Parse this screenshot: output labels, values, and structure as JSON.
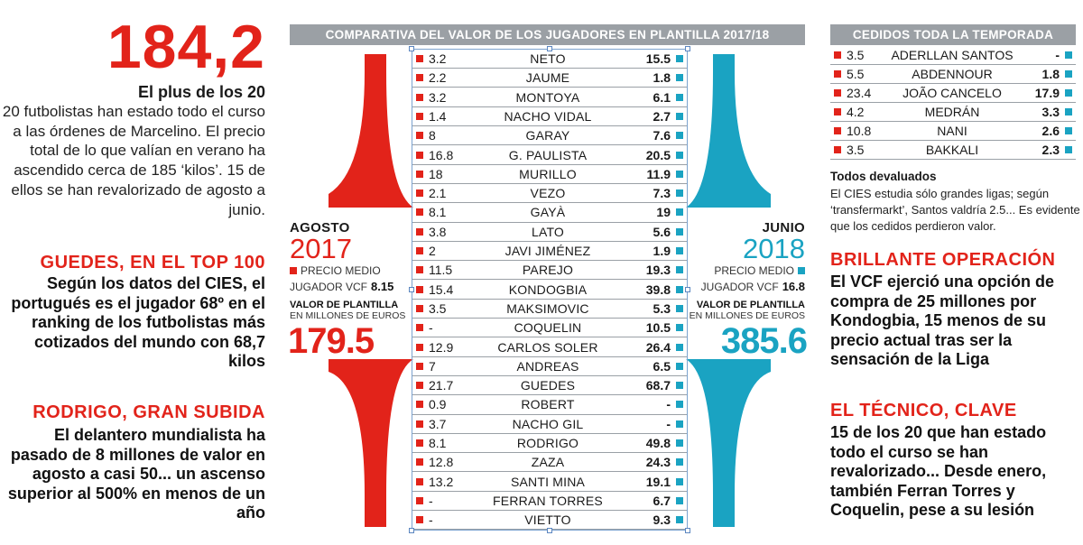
{
  "left": {
    "big_number": "184,2",
    "kicker": "El plus de los 20",
    "intro": "20 futbolistas han estado todo el curso a las órdenes de Marcelino. El precio total de lo que valían en verano ha ascendido cerca de 185 ‘kilos’. 15 de ellos se han revalorizado de agosto a junio.",
    "guedes_head": "GUEDES, EN EL TOP 100",
    "guedes_body": "Según los datos del CIES, el portugués es el jugador 68º en el ranking de los futbolistas más cotizados del mundo con 68,7 kilos",
    "rodrigo_head": "RODRIGO, GRAN SUBIDA",
    "rodrigo_body": "El delantero mundialista ha pasado de 8 millones de valor en agosto a casi 50... un ascenso superior al 500% en menos de un año"
  },
  "center": {
    "title": "COMPARATIVA DEL VALOR DE LOS JUGADORES EN PLANTILLA 2017/18",
    "august": {
      "month": "AGOSTO",
      "year": "2017",
      "price_label_1": "PRECIO MEDIO",
      "price_label_2": "JUGADOR VCF",
      "price_value": "8.15",
      "value_label_1": "VALOR DE PLANTILLA",
      "value_label_2": "EN MILLONES DE EUROS",
      "value": "179.5"
    },
    "june": {
      "month": "JUNIO",
      "year": "2018",
      "price_label_1": "PRECIO MEDIO",
      "price_label_2": "JUGADOR VCF",
      "price_value": "16.8",
      "value_label_1": "VALOR DE PLANTILLA",
      "value_label_2": "EN MILLONES DE EUROS",
      "value": "385.6"
    },
    "colors": {
      "august": "#e2231a",
      "june": "#1aa3c2"
    },
    "players": [
      {
        "aug": "3.2",
        "name": "NETO",
        "jun": "15.5"
      },
      {
        "aug": "2.2",
        "name": "JAUME",
        "jun": "1.8"
      },
      {
        "aug": "3.2",
        "name": "MONTOYA",
        "jun": "6.1"
      },
      {
        "aug": "1.4",
        "name": "NACHO VIDAL",
        "jun": "2.7"
      },
      {
        "aug": "8",
        "name": "GARAY",
        "jun": "7.6"
      },
      {
        "aug": "16.8",
        "name": "G. PAULISTA",
        "jun": "20.5"
      },
      {
        "aug": "18",
        "name": "MURILLO",
        "jun": "11.9"
      },
      {
        "aug": "2.1",
        "name": "VEZO",
        "jun": "7.3"
      },
      {
        "aug": "8.1",
        "name": "GAYÀ",
        "jun": "19"
      },
      {
        "aug": "3.8",
        "name": "LATO",
        "jun": "5.6"
      },
      {
        "aug": "2",
        "name": "JAVI JIMÉNEZ",
        "jun": "1.9"
      },
      {
        "aug": "11.5",
        "name": "PAREJO",
        "jun": "19.3"
      },
      {
        "aug": "15.4",
        "name": "KONDOGBIA",
        "jun": "39.8"
      },
      {
        "aug": "3.5",
        "name": "MAKSIMOVIC",
        "jun": "5.3"
      },
      {
        "aug": "-",
        "name": "COQUELIN",
        "jun": "10.5"
      },
      {
        "aug": "12.9",
        "name": "CARLOS SOLER",
        "jun": "26.4"
      },
      {
        "aug": "7",
        "name": "ANDREAS",
        "jun": "6.5"
      },
      {
        "aug": "21.7",
        "name": "GUEDES",
        "jun": "68.7"
      },
      {
        "aug": "0.9",
        "name": "ROBERT",
        "jun": "-"
      },
      {
        "aug": "3.7",
        "name": "NACHO GIL",
        "jun": "-"
      },
      {
        "aug": "8.1",
        "name": "RODRIGO",
        "jun": "49.8"
      },
      {
        "aug": "12.8",
        "name": "ZAZA",
        "jun": "24.3"
      },
      {
        "aug": "13.2",
        "name": "SANTI MINA",
        "jun": "19.1"
      },
      {
        "aug": "-",
        "name": "FERRAN TORRES",
        "jun": "6.7"
      },
      {
        "aug": "-",
        "name": "VIETTO",
        "jun": "9.3"
      }
    ]
  },
  "right": {
    "loan_title": "CEDIDOS TODA LA TEMPORADA",
    "loans": [
      {
        "aug": "3.5",
        "name": "ADERLLAN SANTOS",
        "jun": "-"
      },
      {
        "aug": "5.5",
        "name": "ABDENNOUR",
        "jun": "1.8"
      },
      {
        "aug": "23.4",
        "name": "JOÃO CANCELO",
        "jun": "17.9"
      },
      {
        "aug": "4.2",
        "name": "MEDRÁN",
        "jun": "3.3"
      },
      {
        "aug": "10.8",
        "name": "NANI",
        "jun": "2.6"
      },
      {
        "aug": "3.5",
        "name": "BAKKALI",
        "jun": "2.3"
      }
    ],
    "devalued_head": "Todos devaluados",
    "devalued_body": "El CIES estudia sólo grandes ligas; según ‘transfermarkt’, Santos valdría 2.5... Es evidente que los cedidos perdieron valor.",
    "operation_head": "BRILLANTE OPERACIÓN",
    "operation_body": "El VCF ejerció una opción de compra de 25 millones por Kondogbia, 15 menos de su precio actual tras ser la sensación de la Liga",
    "coach_head": "EL TÉCNICO, CLAVE",
    "coach_body": "15 de los 20 que han estado todo el curso se han revalorizado... Desde enero, también Ferran Torres y Coquelin, pese a su lesión"
  }
}
